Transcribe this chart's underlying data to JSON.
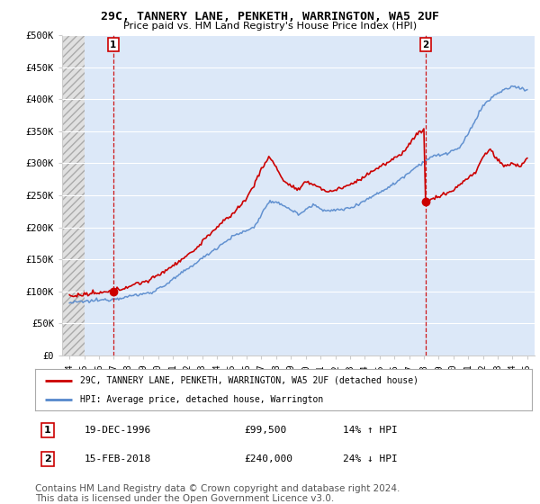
{
  "title": "29C, TANNERY LANE, PENKETH, WARRINGTON, WA5 2UF",
  "subtitle": "Price paid vs. HM Land Registry's House Price Index (HPI)",
  "legend_line1": "29C, TANNERY LANE, PENKETH, WARRINGTON, WA5 2UF (detached house)",
  "legend_line2": "HPI: Average price, detached house, Warrington",
  "sale1_date": "19-DEC-1996",
  "sale1_price": "£99,500",
  "sale1_hpi": "14% ↑ HPI",
  "sale1_label": "1",
  "sale1_x": 1996.96,
  "sale1_y": 99500,
  "sale2_date": "15-FEB-2018",
  "sale2_price": "£240,000",
  "sale2_hpi": "24% ↓ HPI",
  "sale2_label": "2",
  "sale2_x": 2018.12,
  "sale2_y": 240000,
  "vline1_x": 1996.96,
  "vline2_x": 2018.12,
  "xlim_left": 1993.5,
  "xlim_right": 2025.5,
  "ylim_bottom": 0,
  "ylim_top": 500000,
  "yticks": [
    0,
    50000,
    100000,
    150000,
    200000,
    250000,
    300000,
    350000,
    400000,
    450000,
    500000
  ],
  "ytick_labels": [
    "£0",
    "£50K",
    "£100K",
    "£150K",
    "£200K",
    "£250K",
    "£300K",
    "£350K",
    "£400K",
    "£450K",
    "£500K"
  ],
  "hatch_end_x": 1995.0,
  "background_color": "#ffffff",
  "plot_bg_color": "#dce8f8",
  "hatch_color": "#cccccc",
  "grid_color": "#ffffff",
  "red_color": "#cc0000",
  "blue_color": "#5588cc",
  "vline_color": "#cc0000",
  "note_text": "Contains HM Land Registry data © Crown copyright and database right 2024.\nThis data is licensed under the Open Government Licence v3.0.",
  "footnote_fontsize": 7.5
}
